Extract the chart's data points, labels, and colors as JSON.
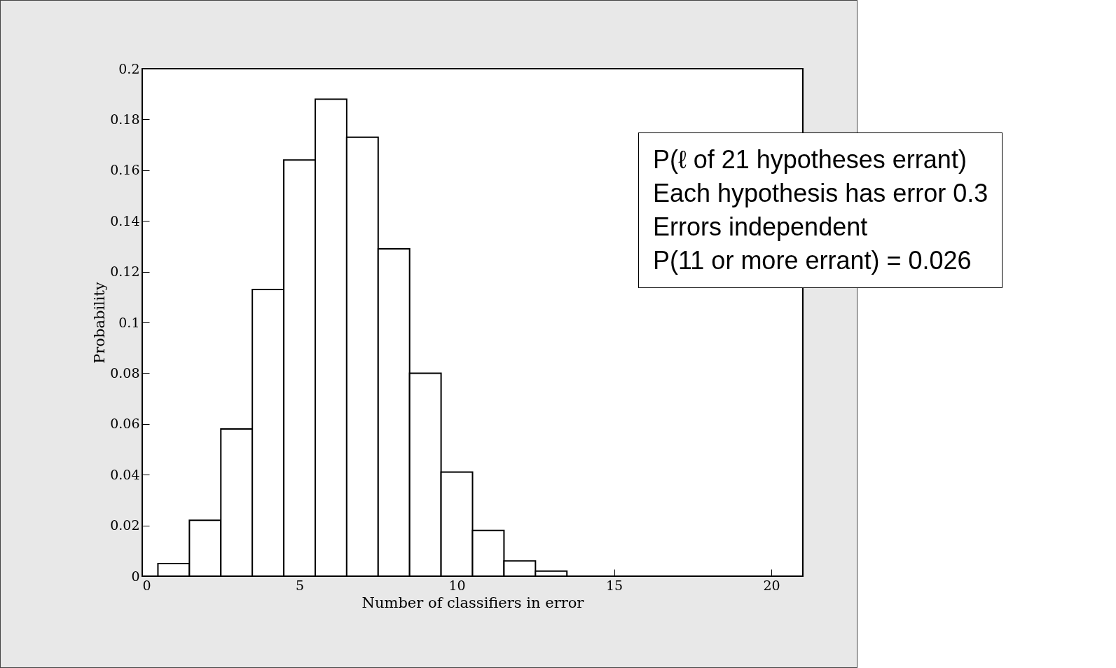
{
  "chart_data": {
    "type": "histogram",
    "xlabel": "Number of classifiers in error",
    "ylabel": "Probability",
    "bins": [
      0.5,
      1.5,
      2.5,
      3.5,
      4.5,
      5.5,
      6.5,
      7.5,
      8.5,
      9.5,
      10.5,
      11.5,
      12.5,
      13.5
    ],
    "values": [
      0.005,
      0.022,
      0.058,
      0.113,
      0.164,
      0.188,
      0.173,
      0.129,
      0.08,
      0.041,
      0.018,
      0.006,
      0.002
    ],
    "color": "#000000",
    "xlim": [
      0,
      21
    ],
    "xticks": [
      0,
      5,
      10,
      15,
      20
    ],
    "ylim": [
      0,
      0.2
    ],
    "yticks": [
      0,
      0.02,
      0.04,
      0.06,
      0.08,
      0.1,
      0.12,
      0.14,
      0.16,
      0.18,
      0.2
    ],
    "annotations": [
      "P(ℓ of 21 hypotheses errant)",
      "Each hypothesis has error 0.3",
      "Errors independent",
      "P(11 or more errant) = 0.026"
    ]
  }
}
